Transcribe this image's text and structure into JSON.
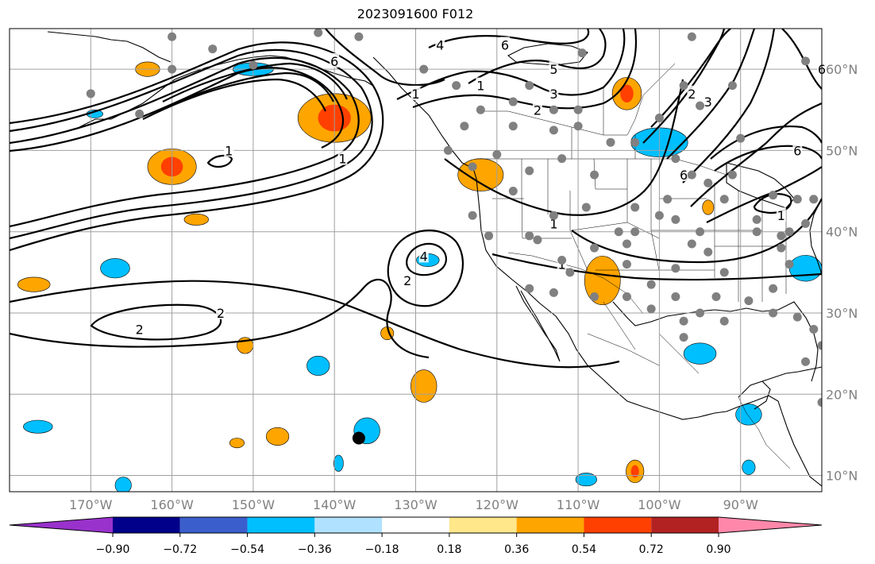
{
  "title": "2023091600 F012",
  "colors": {
    "grid": "#a0a0a0",
    "tick_label": "#808080",
    "station_dot": "#808080",
    "marker": "#000000",
    "contour": "#000000"
  },
  "map": {
    "projection": "plate-carree",
    "lon_range": [
      -180,
      -80
    ],
    "lat_range": [
      8,
      65
    ],
    "lon_ticks": [
      {
        "lon": -170,
        "label": "170°W"
      },
      {
        "lon": -160,
        "label": "160°W"
      },
      {
        "lon": -150,
        "label": "150°W"
      },
      {
        "lon": -140,
        "label": "140°W"
      },
      {
        "lon": -130,
        "label": "130°W"
      },
      {
        "lon": -120,
        "label": "120°W"
      },
      {
        "lon": -110,
        "label": "110°W"
      },
      {
        "lon": -100,
        "label": "100°W"
      },
      {
        "lon": -90,
        "label": "90°W"
      }
    ],
    "lat_ticks": [
      {
        "lat": 60,
        "label": "60°N"
      },
      {
        "lat": 50,
        "label": "50°N"
      },
      {
        "lat": 40,
        "label": "40°N"
      },
      {
        "lat": 30,
        "label": "30°N"
      },
      {
        "lat": 20,
        "label": "20°N"
      },
      {
        "lat": 10,
        "label": "10°N"
      }
    ],
    "contour_labels": [
      {
        "text": "1",
        "lon": -153,
        "lat": 50
      },
      {
        "text": "2",
        "lon": -164,
        "lat": 28
      },
      {
        "text": "2",
        "lon": -154,
        "lat": 30
      },
      {
        "text": "2",
        "lon": -131,
        "lat": 34
      },
      {
        "text": "4",
        "lon": -129,
        "lat": 37
      },
      {
        "text": "1",
        "lon": -139,
        "lat": 49
      },
      {
        "text": "1",
        "lon": -130,
        "lat": 57
      },
      {
        "text": "1",
        "lon": -122,
        "lat": 58
      },
      {
        "text": "4",
        "lon": -127,
        "lat": 63
      },
      {
        "text": "6",
        "lon": -140,
        "lat": 61
      },
      {
        "text": "6",
        "lon": -119,
        "lat": 63
      },
      {
        "text": "5",
        "lon": -113,
        "lat": 60
      },
      {
        "text": "3",
        "lon": -113,
        "lat": 57
      },
      {
        "text": "2",
        "lon": -115,
        "lat": 55
      },
      {
        "text": "1",
        "lon": -113,
        "lat": 41
      },
      {
        "text": "1",
        "lon": -112,
        "lat": 36
      },
      {
        "text": "6",
        "lon": -97,
        "lat": 47
      },
      {
        "text": "2",
        "lon": -96,
        "lat": 57
      },
      {
        "text": "3",
        "lon": -94,
        "lat": 56
      },
      {
        "text": "6",
        "lon": -83,
        "lat": 50
      },
      {
        "text": "6",
        "lon": -80,
        "lat": 60
      },
      {
        "text": "1",
        "lon": -85,
        "lat": 42
      }
    ],
    "positive_regions": [
      {
        "lon": -140,
        "lat": 54,
        "rx": 4.5,
        "ry": 3.0,
        "level": "high"
      },
      {
        "lon": -160,
        "lat": 48,
        "rx": 3.0,
        "ry": 2.2,
        "level": "high"
      },
      {
        "lon": -163,
        "lat": 60,
        "rx": 1.5,
        "ry": 0.9,
        "level": "mid"
      },
      {
        "lon": -104,
        "lat": 57,
        "rx": 1.8,
        "ry": 2.0,
        "level": "high"
      },
      {
        "lon": -122,
        "lat": 47,
        "rx": 2.8,
        "ry": 2.0,
        "level": "mid"
      },
      {
        "lon": -107,
        "lat": 34,
        "rx": 2.2,
        "ry": 3.0,
        "level": "mid"
      },
      {
        "lon": -177,
        "lat": 33.5,
        "rx": 2.0,
        "ry": 0.9,
        "level": "mid"
      },
      {
        "lon": -157,
        "lat": 41.5,
        "rx": 1.5,
        "ry": 0.7,
        "level": "mid"
      },
      {
        "lon": -151,
        "lat": 26,
        "rx": 1.0,
        "ry": 1.0,
        "level": "mid"
      },
      {
        "lon": -129,
        "lat": 21,
        "rx": 1.6,
        "ry": 2.0,
        "level": "mid"
      },
      {
        "lon": -147,
        "lat": 14.8,
        "rx": 1.4,
        "ry": 1.1,
        "level": "mid"
      },
      {
        "lon": -133.5,
        "lat": 27.5,
        "rx": 0.8,
        "ry": 0.8,
        "level": "mid"
      },
      {
        "lon": -103,
        "lat": 10.5,
        "rx": 1.1,
        "ry": 1.4,
        "level": "high"
      },
      {
        "lon": -94,
        "lat": 43,
        "rx": 0.7,
        "ry": 0.9,
        "level": "mid"
      },
      {
        "lon": -152,
        "lat": 14,
        "rx": 0.9,
        "ry": 0.6,
        "level": "mid"
      }
    ],
    "negative_regions": [
      {
        "lon": -100,
        "lat": 51,
        "rx": 3.5,
        "ry": 1.8
      },
      {
        "lon": -82,
        "lat": 35.5,
        "rx": 2.0,
        "ry": 1.6
      },
      {
        "lon": -128.5,
        "lat": 36.5,
        "rx": 1.4,
        "ry": 0.8
      },
      {
        "lon": -167,
        "lat": 35.5,
        "rx": 1.8,
        "ry": 1.2
      },
      {
        "lon": -142,
        "lat": 23.5,
        "rx": 1.4,
        "ry": 1.2
      },
      {
        "lon": -136,
        "lat": 15.5,
        "rx": 1.6,
        "ry": 1.6
      },
      {
        "lon": -139.5,
        "lat": 11.5,
        "rx": 0.6,
        "ry": 1.0
      },
      {
        "lon": -176.5,
        "lat": 16,
        "rx": 1.8,
        "ry": 0.8
      },
      {
        "lon": -89,
        "lat": 17.5,
        "rx": 1.6,
        "ry": 1.3
      },
      {
        "lon": -95,
        "lat": 25,
        "rx": 2.0,
        "ry": 1.3
      },
      {
        "lon": -166,
        "lat": 8.8,
        "rx": 1.0,
        "ry": 1.0
      },
      {
        "lon": -109,
        "lat": 9.5,
        "rx": 1.3,
        "ry": 0.8
      },
      {
        "lon": -150,
        "lat": 60,
        "rx": 2.5,
        "ry": 0.8
      },
      {
        "lon": -169.5,
        "lat": 54.5,
        "rx": 1.0,
        "ry": 0.5
      },
      {
        "lon": -89,
        "lat": 11,
        "rx": 0.8,
        "ry": 0.9
      }
    ],
    "station_dots": [
      [
        -160,
        64
      ],
      [
        -155,
        62.5
      ],
      [
        -142,
        64.5
      ],
      [
        -137,
        64
      ],
      [
        -150,
        60.5
      ],
      [
        -170,
        57
      ],
      [
        -164,
        54.5
      ],
      [
        -160,
        60
      ],
      [
        -129,
        60
      ],
      [
        -125,
        58
      ],
      [
        -122,
        55
      ],
      [
        -118,
        53
      ],
      [
        -113,
        55
      ],
      [
        -116,
        58
      ],
      [
        -106,
        51
      ],
      [
        -103,
        51
      ],
      [
        -110,
        53
      ],
      [
        -113,
        52.5
      ],
      [
        -112,
        49
      ],
      [
        -108,
        47
      ],
      [
        -120,
        49.5
      ],
      [
        -126,
        50
      ],
      [
        -123,
        48
      ],
      [
        -116,
        47.5
      ],
      [
        -118,
        45
      ],
      [
        -109,
        43
      ],
      [
        -113,
        42
      ],
      [
        -123,
        42
      ],
      [
        -121,
        39.5
      ],
      [
        -116,
        39.5
      ],
      [
        -115,
        39
      ],
      [
        -108,
        38
      ],
      [
        -104,
        38.5
      ],
      [
        -112,
        36.5
      ],
      [
        -111,
        35
      ],
      [
        -108,
        32
      ],
      [
        -113,
        32.5
      ],
      [
        -116,
        33
      ],
      [
        -104,
        36
      ],
      [
        -104,
        32
      ],
      [
        -101,
        33.5
      ],
      [
        -101,
        30.5
      ],
      [
        -98,
        32
      ],
      [
        -97,
        29
      ],
      [
        -97,
        27
      ],
      [
        -95,
        30
      ],
      [
        -93,
        32
      ],
      [
        -92,
        29
      ],
      [
        -89,
        31.5
      ],
      [
        -86,
        33
      ],
      [
        -86,
        30
      ],
      [
        -83,
        29.5
      ],
      [
        -81,
        28
      ],
      [
        -80,
        26
      ],
      [
        -82,
        24
      ],
      [
        -80,
        19
      ],
      [
        -98,
        35.5
      ],
      [
        -98,
        41.5
      ],
      [
        -95,
        40
      ],
      [
        -96,
        38.5
      ],
      [
        -94,
        37.5
      ],
      [
        -92,
        35
      ],
      [
        -88,
        40
      ],
      [
        -88,
        41.5
      ],
      [
        -85,
        38
      ],
      [
        -84,
        36
      ],
      [
        -82,
        41
      ],
      [
        -84,
        40
      ],
      [
        -85,
        39.5
      ],
      [
        -92,
        44
      ],
      [
        -94,
        46
      ],
      [
        -91,
        47
      ],
      [
        -96,
        47
      ],
      [
        -98,
        49
      ],
      [
        -100,
        54
      ],
      [
        -97,
        58
      ],
      [
        -95,
        55.5
      ],
      [
        -90,
        51.5
      ],
      [
        -86,
        44.5
      ],
      [
        -83,
        44
      ],
      [
        -81,
        44
      ],
      [
        -82,
        61
      ],
      [
        -99,
        44
      ],
      [
        -100,
        42
      ],
      [
        -103,
        40
      ],
      [
        -105,
        40
      ],
      [
        -103,
        43
      ],
      [
        -110,
        55
      ],
      [
        -118,
        56
      ],
      [
        -109.5,
        62
      ],
      [
        -124,
        53
      ],
      [
        -91,
        58
      ],
      [
        -96,
        64
      ]
    ],
    "marker": {
      "lon": -137,
      "lat": 14.6
    }
  },
  "colorbar": {
    "labels": [
      "−0.90",
      "−0.72",
      "−0.54",
      "−0.36",
      "−0.18",
      "0.18",
      "0.36",
      "0.54",
      "0.72",
      "0.90"
    ],
    "colors": [
      "#9932cc",
      "#00008b",
      "#3a5fcd",
      "#00bfff",
      "#b0e2ff",
      "#ffffff",
      "#ffe78a",
      "#ffa500",
      "#ff4000",
      "#b22222",
      "#ff88aa"
    ]
  }
}
